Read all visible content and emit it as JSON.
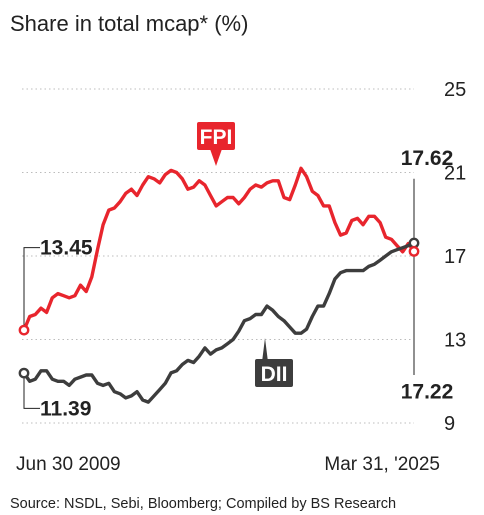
{
  "chart_data": {
    "type": "line",
    "title": "Share in total mcap* (%)",
    "source": "Source: NSDL, Sebi, Bloomberg; Compiled by BS Research",
    "x_start_label": "Jun 30 2009",
    "x_end_label": "Mar 31, '2025",
    "ylim": [
      9,
      25
    ],
    "yticks": [
      9,
      13,
      17,
      21,
      25
    ],
    "grid": true,
    "series": [
      {
        "name": "FPI",
        "color": "#e8252d",
        "start_value_label": "13.45",
        "end_value_label": "17.22",
        "values": [
          13.45,
          14.1,
          14.2,
          14.5,
          14.3,
          15.0,
          15.2,
          15.1,
          15.0,
          15.1,
          15.6,
          15.3,
          16.0,
          17.3,
          18.5,
          19.2,
          19.3,
          19.6,
          20.0,
          20.2,
          19.9,
          20.4,
          20.8,
          20.7,
          20.5,
          20.9,
          21.1,
          21.0,
          20.7,
          20.2,
          20.3,
          20.6,
          20.4,
          19.9,
          19.4,
          19.6,
          19.8,
          19.8,
          19.5,
          19.8,
          20.2,
          20.4,
          20.3,
          20.5,
          20.6,
          20.6,
          19.8,
          19.7,
          20.4,
          21.2,
          20.8,
          20.1,
          19.9,
          19.4,
          19.4,
          18.6,
          18.0,
          18.1,
          18.7,
          18.8,
          18.5,
          18.9,
          18.9,
          18.6,
          17.9,
          17.8,
          17.5,
          17.2,
          17.6,
          17.22
        ]
      },
      {
        "name": "DII",
        "color": "#3d3d3d",
        "start_value_label": "11.39",
        "end_value_label": "17.62",
        "values": [
          11.39,
          11.0,
          11.1,
          11.5,
          11.5,
          11.1,
          11.0,
          11.0,
          10.8,
          11.1,
          11.2,
          11.3,
          11.3,
          10.9,
          10.8,
          10.9,
          10.5,
          10.4,
          10.2,
          10.3,
          10.5,
          10.1,
          10.0,
          10.3,
          10.6,
          10.9,
          11.4,
          11.5,
          11.8,
          12.0,
          11.9,
          12.2,
          12.6,
          12.3,
          12.5,
          12.6,
          12.8,
          13.0,
          13.4,
          13.9,
          14.0,
          14.2,
          14.2,
          14.6,
          14.4,
          14.1,
          13.9,
          13.6,
          13.3,
          13.3,
          13.5,
          14.1,
          14.6,
          14.6,
          15.2,
          15.9,
          16.2,
          16.3,
          16.3,
          16.3,
          16.3,
          16.5,
          16.6,
          16.8,
          17.0,
          17.2,
          17.3,
          17.4,
          17.5,
          17.62
        ]
      }
    ]
  }
}
